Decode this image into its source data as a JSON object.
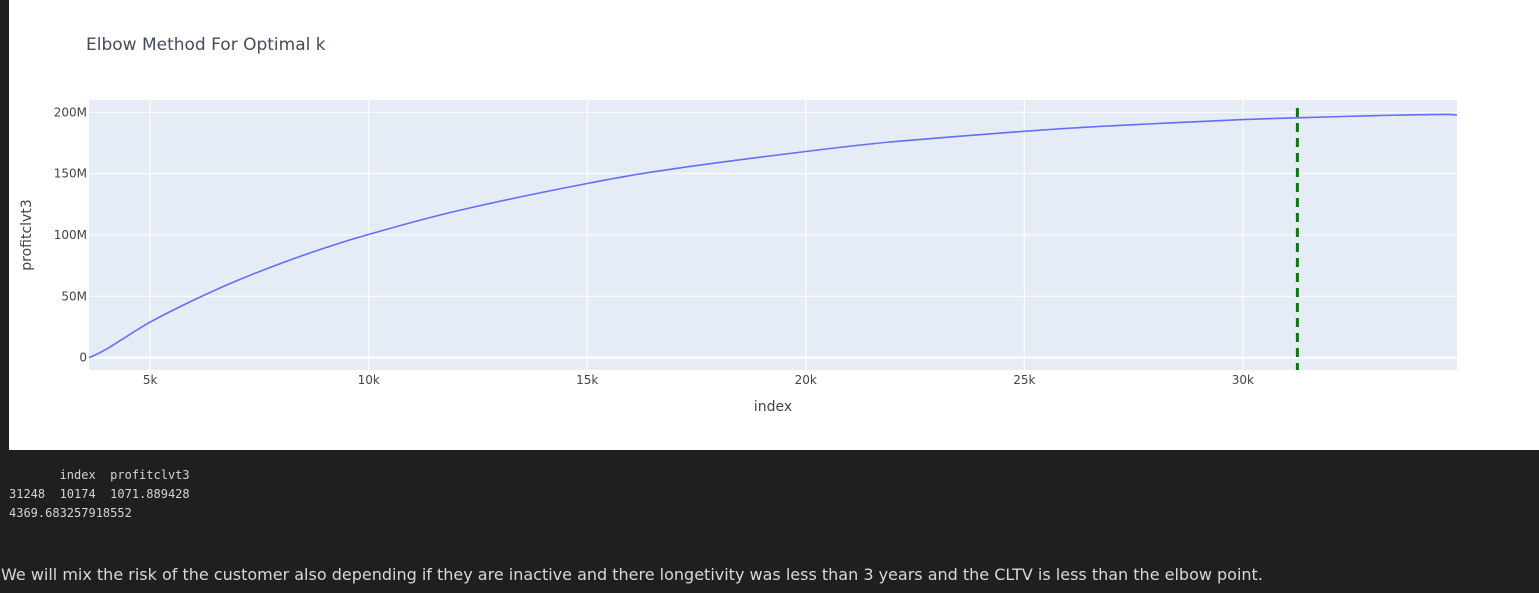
{
  "chart_data": {
    "type": "line",
    "title": "Elbow Method For Optimal k",
    "xlabel": "index",
    "ylabel": "profitclvt3",
    "xlim": [
      3600,
      34900
    ],
    "ylim": [
      -10000000,
      210000000
    ],
    "x_ticks": [
      5000,
      10000,
      15000,
      20000,
      25000,
      30000
    ],
    "x_tick_labels": [
      "5k",
      "10k",
      "15k",
      "20k",
      "25k",
      "30k"
    ],
    "y_ticks": [
      0,
      50000000,
      100000000,
      150000000,
      200000000
    ],
    "y_tick_labels": [
      "0",
      "50M",
      "100M",
      "150M",
      "200M"
    ],
    "grid": true,
    "line_color": "#636efa",
    "series": [
      {
        "x": [
          3600,
          4000,
          5000,
          6000,
          7000,
          8000,
          9000,
          10000,
          12000,
          15000,
          17000,
          20000,
          22000,
          25000,
          27000,
          30000,
          31248,
          33000,
          34600,
          34900
        ],
        "values": [
          0,
          7000000,
          29000000,
          47000000,
          63000000,
          77000000,
          89500000,
          100500000,
          119500000,
          142000000,
          154000000,
          168000000,
          176000000,
          184500000,
          189000000,
          194000000,
          195500000,
          197200000,
          198300000,
          197600000
        ]
      }
    ],
    "vline": {
      "x": 31248,
      "color": "#008000",
      "dash": "dash"
    }
  },
  "text_output": {
    "header": "       index  profitclvt3",
    "row": "31248  10174  1071.889428",
    "value": "4369.683257918552"
  },
  "markdown": {
    "text": "We will mix the risk of the customer also depending if they are inactive and there longetivity was less than 3 years and the CLTV is less than the elbow point."
  }
}
